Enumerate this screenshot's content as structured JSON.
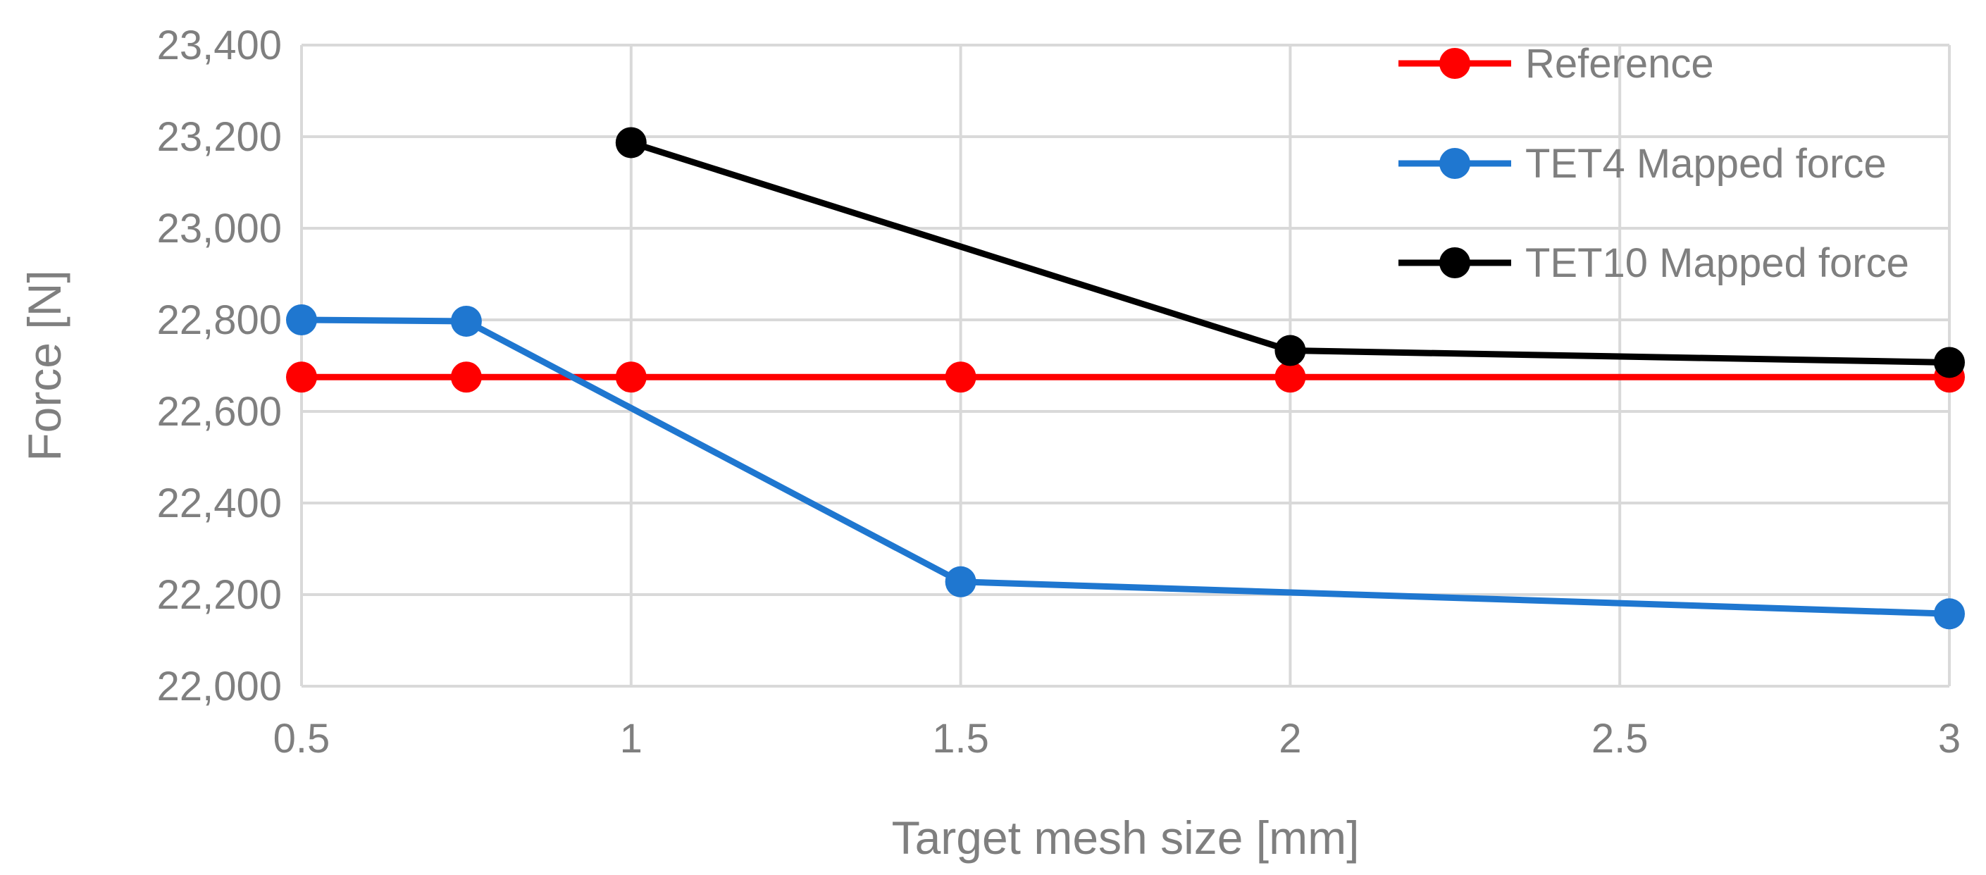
{
  "chart_data": {
    "type": "line",
    "title": "",
    "xlabel": "Target mesh size [mm]",
    "ylabel": "Force [N]",
    "x_categories": [
      "0.5",
      "1",
      "1.5",
      "2",
      "2.5",
      "3"
    ],
    "xlim": [
      0.5,
      3
    ],
    "ylim": [
      22000,
      23400
    ],
    "y_ticks": [
      "22,000",
      "22,200",
      "22,400",
      "22,600",
      "22,800",
      "23,000",
      "23,200",
      "23,400"
    ],
    "grid": true,
    "legend_position": "top-right",
    "series": [
      {
        "name": "Reference",
        "color": "#ff0000",
        "points": [
          {
            "x": 0.5,
            "y": 22675
          },
          {
            "x": 0.75,
            "y": 22675
          },
          {
            "x": 1,
            "y": 22675
          },
          {
            "x": 1.5,
            "y": 22675
          },
          {
            "x": 2,
            "y": 22675
          },
          {
            "x": 3,
            "y": 22675
          }
        ]
      },
      {
        "name": "TET4 Mapped force",
        "color": "#1f77d0",
        "points": [
          {
            "x": 0.5,
            "y": 22800
          },
          {
            "x": 0.75,
            "y": 22797
          },
          {
            "x": 1.5,
            "y": 22228
          },
          {
            "x": 3,
            "y": 22158
          }
        ]
      },
      {
        "name": "TET10 Mapped force",
        "color": "#000000",
        "points": [
          {
            "x": 1,
            "y": 23187
          },
          {
            "x": 2,
            "y": 22733
          },
          {
            "x": 3,
            "y": 22707
          }
        ]
      }
    ]
  }
}
